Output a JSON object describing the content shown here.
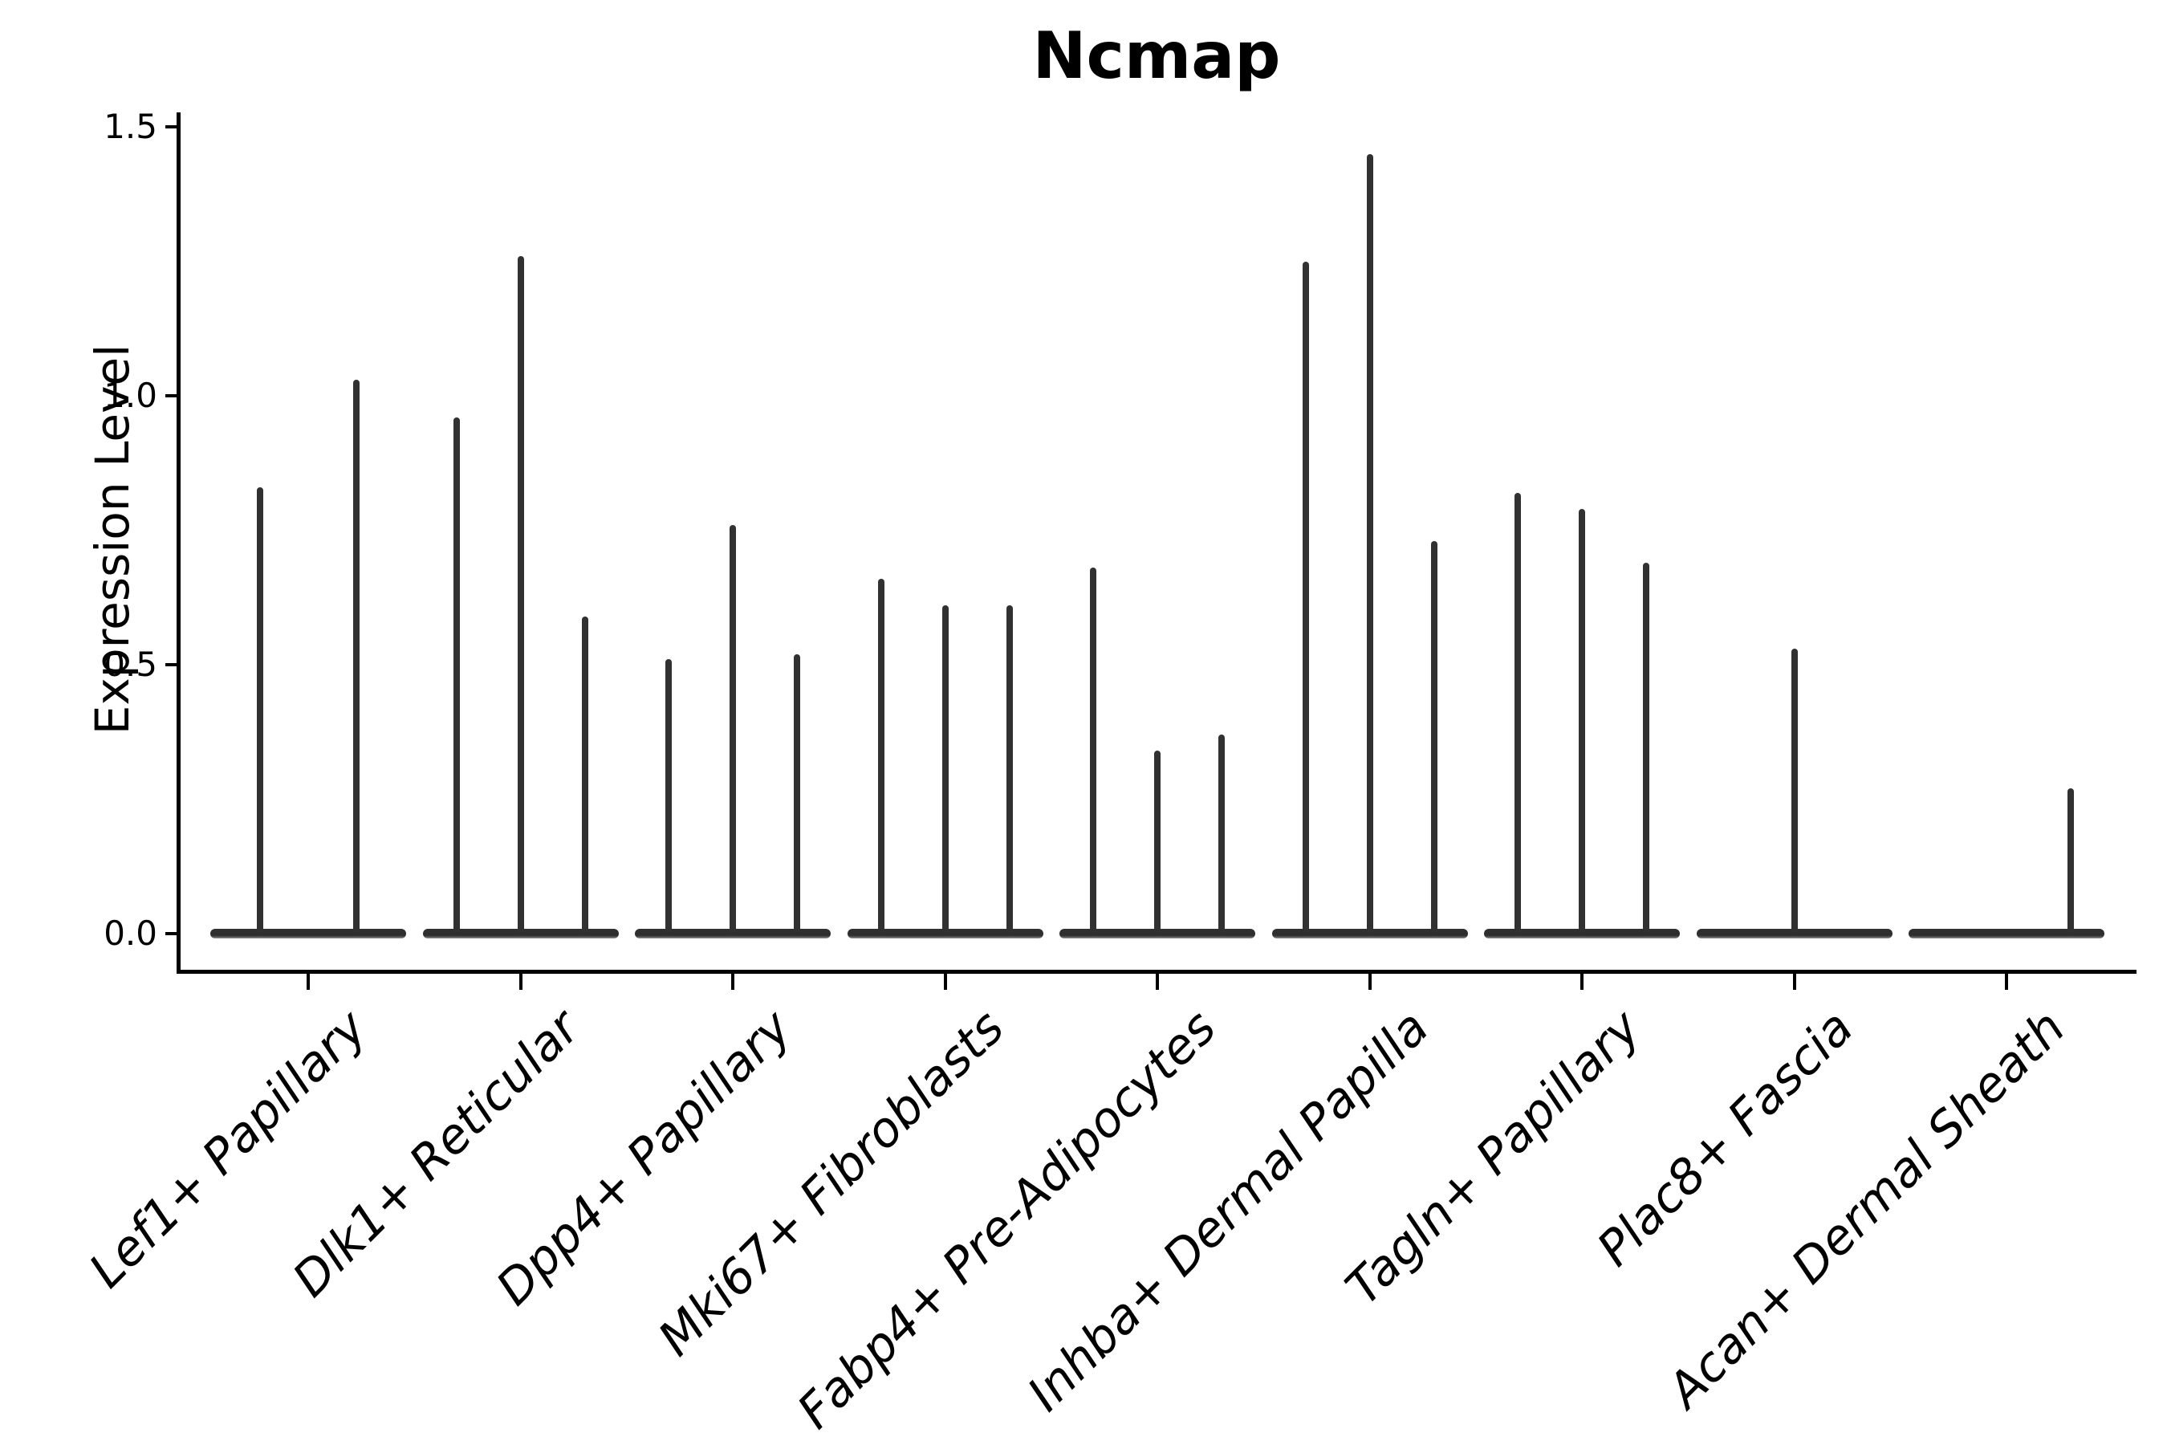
{
  "chart_data": {
    "type": "violin",
    "title": "Ncmap",
    "xlabel": "",
    "ylabel": "Expression Level",
    "ylim": [
      -0.07,
      1.52
    ],
    "yticks": [
      0.0,
      0.5,
      1.0,
      1.5
    ],
    "ytick_labels": [
      "0.0",
      "0.5",
      "1.0",
      "1.5"
    ],
    "grid": false,
    "legend": null,
    "x_tick_label_rotation_deg": 45,
    "x_tick_label_italic": true,
    "categories": [
      "Lef1+ Papillary",
      "Dlk1+ Reticular",
      "Dpp4+ Papillary",
      "Mki67+ Fibroblasts",
      "Fabp4+ Pre-Adipocytes",
      "Inhba+ Dermal Papilla",
      "Tagln+ Papillary",
      "Plac8+ Fascia",
      "Acan+ Dermal Sheath"
    ],
    "series": [
      {
        "category": "Lef1+ Papillary",
        "violins": [
          0.83,
          1.03
        ]
      },
      {
        "category": "Dlk1+ Reticular",
        "violins": [
          0.96,
          1.26,
          0.59
        ]
      },
      {
        "category": "Dpp4+ Papillary",
        "violins": [
          0.51,
          0.76,
          0.52
        ]
      },
      {
        "category": "Mki67+ Fibroblasts",
        "violins": [
          0.66,
          0.61,
          0.61
        ]
      },
      {
        "category": "Fabp4+ Pre-Adipocytes",
        "violins": [
          0.68,
          0.34,
          0.37
        ]
      },
      {
        "category": "Inhba+ Dermal Papilla",
        "violins": [
          1.25,
          1.45,
          0.73
        ]
      },
      {
        "category": "Tagln+ Papillary",
        "violins": [
          0.82,
          0.79,
          0.69
        ]
      },
      {
        "category": "Plac8+ Fascia",
        "violins": [
          0.0,
          0.53,
          0.0
        ]
      },
      {
        "category": "Acan+ Dermal Sheath",
        "violins": [
          0.0,
          0.0,
          0.27
        ]
      }
    ],
    "violin_value_meaning": "max expression level reached by each thin violin spike; bulk of density sits flat at 0",
    "colors": {
      "violin": "#303030",
      "axis": "#000000",
      "text": "#000000",
      "background": "#ffffff"
    }
  }
}
